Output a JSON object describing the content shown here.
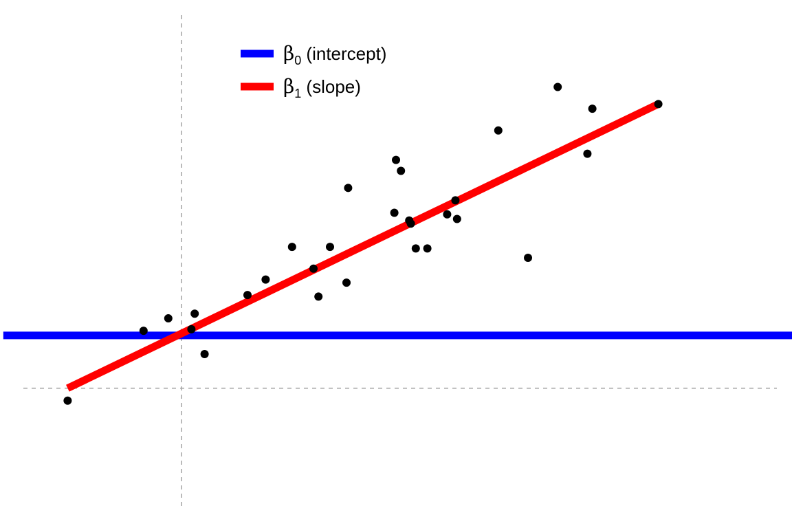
{
  "chart_data": {
    "type": "scatter",
    "title": "",
    "xlabel": "",
    "ylabel": "",
    "xlim": [
      -1.1,
      3.7
    ],
    "ylim": [
      -0.9,
      2.5
    ],
    "grid": false,
    "axes_visible": false,
    "reference_lines": [
      {
        "orientation": "vertical",
        "value": 0,
        "style": "dashed",
        "color": "#a8a8a8"
      },
      {
        "orientation": "horizontal",
        "value": 0,
        "style": "dashed",
        "color": "#a8a8a8"
      }
    ],
    "points": [
      {
        "x": -0.69,
        "y": -0.08
      },
      {
        "x": -0.23,
        "y": 0.37
      },
      {
        "x": -0.08,
        "y": 0.45
      },
      {
        "x": 0.06,
        "y": 0.38
      },
      {
        "x": 0.08,
        "y": 0.48
      },
      {
        "x": 0.14,
        "y": 0.22
      },
      {
        "x": 0.4,
        "y": 0.6
      },
      {
        "x": 0.51,
        "y": 0.7
      },
      {
        "x": 0.67,
        "y": 0.91
      },
      {
        "x": 0.8,
        "y": 0.77
      },
      {
        "x": 0.83,
        "y": 0.59
      },
      {
        "x": 0.9,
        "y": 0.91
      },
      {
        "x": 1.0,
        "y": 0.68
      },
      {
        "x": 1.01,
        "y": 1.29
      },
      {
        "x": 1.29,
        "y": 1.13
      },
      {
        "x": 1.3,
        "y": 1.47
      },
      {
        "x": 1.33,
        "y": 1.4
      },
      {
        "x": 1.38,
        "y": 1.08
      },
      {
        "x": 1.39,
        "y": 1.06
      },
      {
        "x": 1.42,
        "y": 0.9
      },
      {
        "x": 1.49,
        "y": 0.9
      },
      {
        "x": 1.61,
        "y": 1.12
      },
      {
        "x": 1.66,
        "y": 1.21
      },
      {
        "x": 1.67,
        "y": 1.09
      },
      {
        "x": 1.92,
        "y": 1.66
      },
      {
        "x": 2.1,
        "y": 0.84
      },
      {
        "x": 2.28,
        "y": 1.94
      },
      {
        "x": 2.46,
        "y": 1.51
      },
      {
        "x": 2.49,
        "y": 1.8
      },
      {
        "x": 2.89,
        "y": 1.83
      }
    ],
    "series": [
      {
        "name": "β0 (intercept)",
        "type": "hline",
        "color": "#0000ff",
        "value": 0.34,
        "x_range": [
          -1.08,
          3.7
        ]
      },
      {
        "name": "β1 (slope)",
        "type": "line",
        "color": "#ff0000",
        "x": [
          -0.69,
          2.89
        ],
        "y": [
          0.0,
          1.83
        ]
      }
    ],
    "legend": {
      "position": "top-left",
      "entries": [
        {
          "symbol": "β",
          "subscript": "0",
          "label": " (intercept)",
          "color": "#0000ff"
        },
        {
          "symbol": "β",
          "subscript": "1",
          "label": " (slope)",
          "color": "#ff0000"
        }
      ]
    },
    "point_color": "#000000"
  }
}
